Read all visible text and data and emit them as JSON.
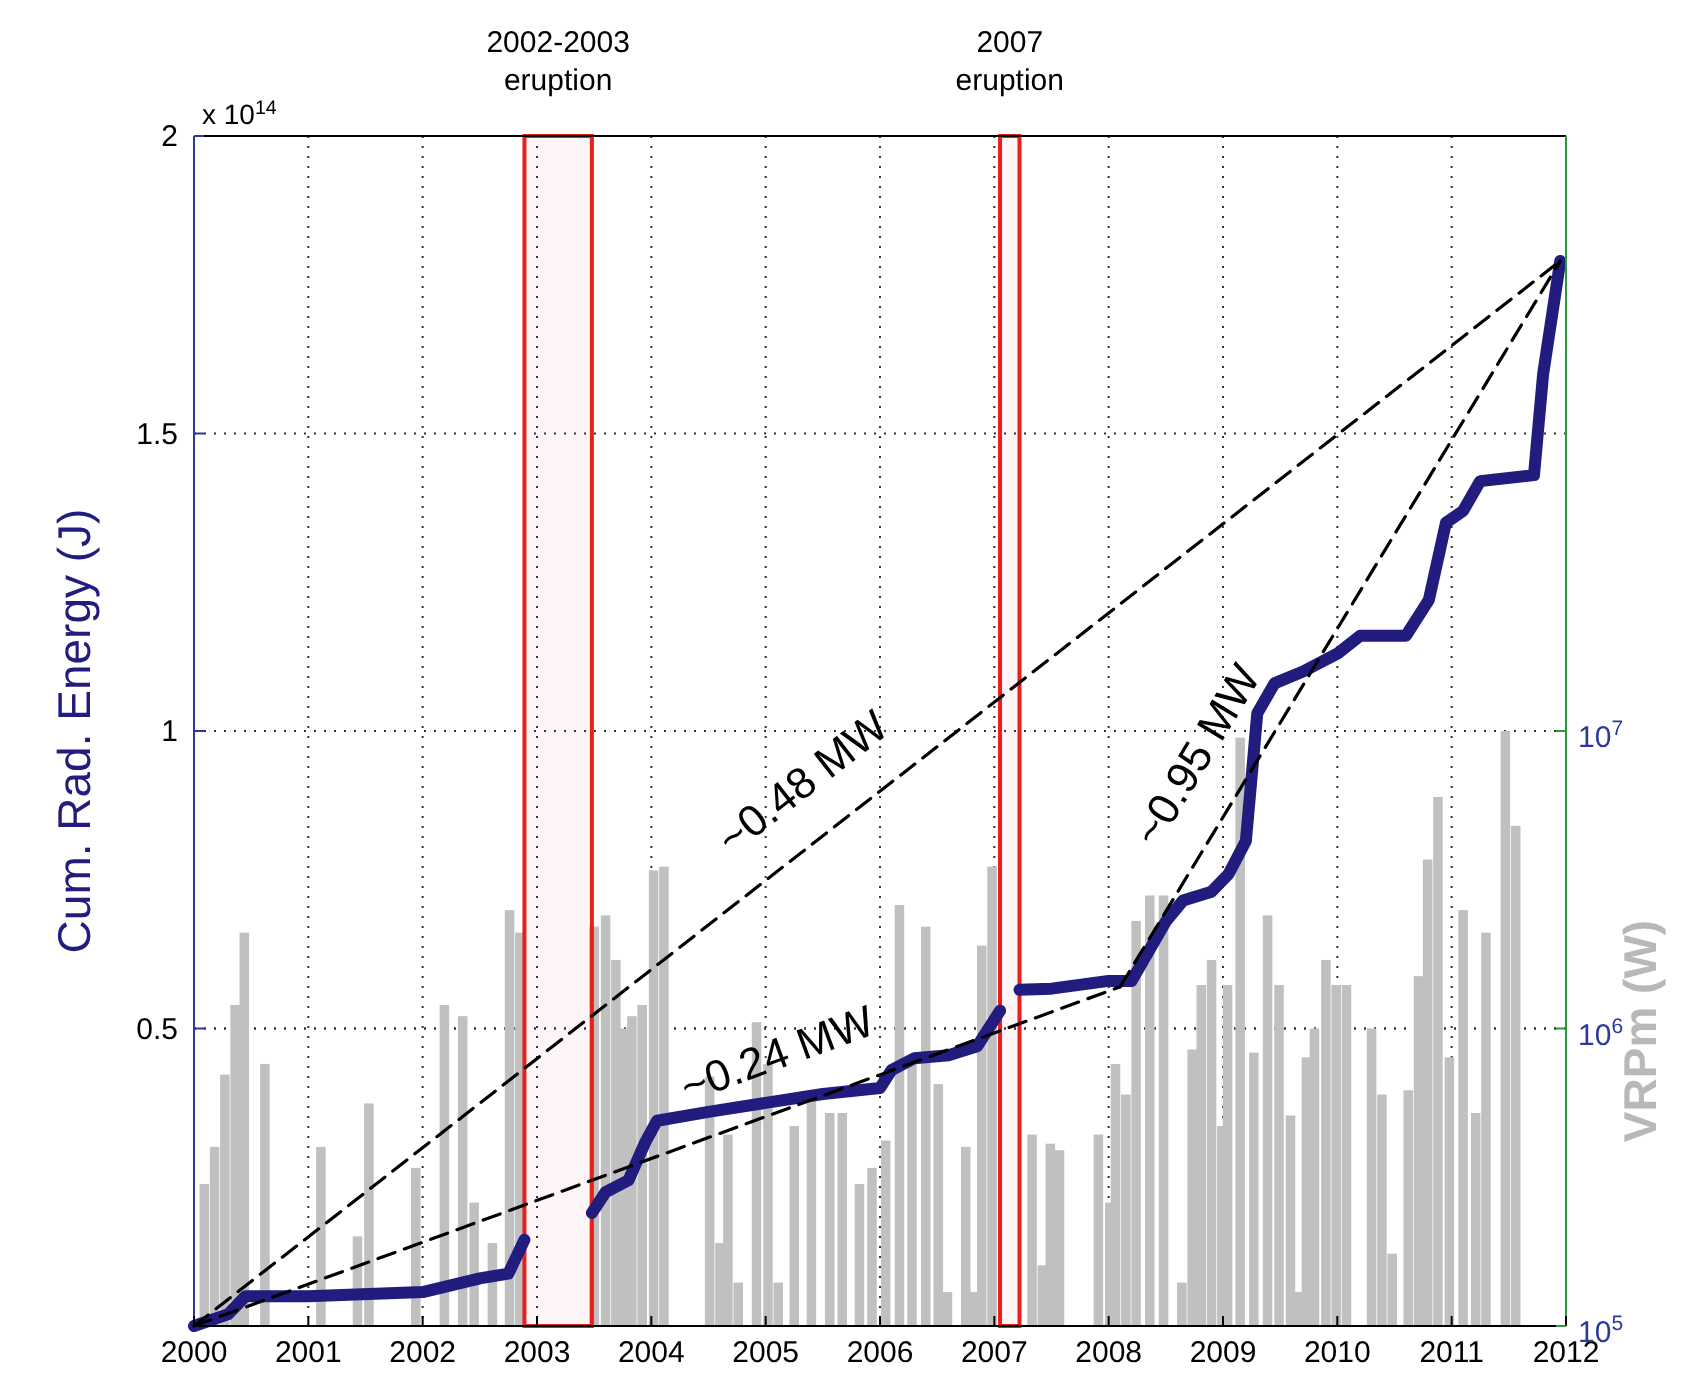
{
  "chart_data": {
    "type": "line",
    "xlabel": null,
    "ylabel": "Cum. Rad. Energy (J)",
    "y2label": "VRPm (W)",
    "xlim": [
      2000,
      2012
    ],
    "xticks": [
      2000,
      2001,
      2002,
      2003,
      2004,
      2005,
      2006,
      2007,
      2008,
      2009,
      2010,
      2011,
      2012
    ],
    "ylim": [
      0,
      2
    ],
    "yticks": [
      0.5,
      1,
      1.5,
      2
    ],
    "y2lim": [
      100000,
      1000000000
    ],
    "y2ticks": [
      {
        "value": 100000,
        "label": "10$^{5}$"
      },
      {
        "value": 1000000,
        "label": "10$^{6}$"
      },
      {
        "value": 10000000,
        "label": "10$^{7}$"
      }
    ],
    "log": "y2",
    "grid": true,
    "bands": [
      {
        "axis": "x",
        "from": 2002.89,
        "to": 2003.48,
        "label": "2002-2003\neruption",
        "color": "#e8201c"
      },
      {
        "axis": "x",
        "from": 2007.05,
        "to": 2007.22,
        "label": "2007\neruption",
        "color": "#e8201c"
      }
    ],
    "annotations": [
      "x 10$^{14}$",
      "~0.48 MW",
      "~0.24 MW",
      "~0.95 MW"
    ],
    "series": [
      {
        "type": "bar",
        "axis": "y2",
        "color": "#c0c0c0",
        "x": [
          2000.09,
          2000.18,
          2000.27,
          2000.36,
          2000.44,
          2000.62,
          2001.11,
          2001.43,
          2001.53,
          2001.94,
          2002.19,
          2002.35,
          2002.45,
          2002.61,
          2002.76,
          2002.85,
          2003.5,
          2003.6,
          2003.69,
          2003.76,
          2003.83,
          2003.92,
          2004.02,
          2004.11,
          2004.51,
          2004.6,
          2004.67,
          2004.76,
          2004.92,
          2005.02,
          2005.11,
          2005.25,
          2005.4,
          2005.56,
          2005.67,
          2005.82,
          2005.93,
          2006.05,
          2006.17,
          2006.28,
          2006.4,
          2006.51,
          2006.59,
          2006.75,
          2006.82,
          2006.89,
          2006.98,
          2007.33,
          2007.42,
          2007.49,
          2007.57,
          2007.91,
          2008.01,
          2008.06,
          2008.15,
          2008.24,
          2008.36,
          2008.48,
          2008.64,
          2008.73,
          2008.81,
          2008.9,
          2008.99,
          2009.04,
          2009.15,
          2009.27,
          2009.39,
          2009.49,
          2009.59,
          2009.66,
          2009.73,
          2009.8,
          2009.9,
          2009.99,
          2010.08,
          2010.3,
          2010.39,
          2010.48,
          2010.62,
          2010.71,
          2010.79,
          2010.88,
          2010.98,
          2011.1,
          2011.21,
          2011.3,
          2011.47,
          2011.56
        ],
        "values": [
          300000,
          400000,
          700000,
          1200000,
          2100000,
          760000,
          400000,
          200000,
          560000,
          340000,
          1200000,
          1100000,
          260000,
          190000,
          2500000,
          2100000,
          2200000,
          2400000,
          1700000,
          1000000,
          1100000,
          1200000,
          3400000,
          3500000,
          690000,
          190000,
          440000,
          140000,
          1050000,
          760000,
          140000,
          470000,
          590000,
          520000,
          520000,
          300000,
          340000,
          420000,
          2600000,
          790000,
          2200000,
          650000,
          130000,
          400000,
          130000,
          1900000,
          3500000,
          440000,
          160000,
          410000,
          390000,
          440000,
          260000,
          760000,
          600000,
          2300000,
          2800000,
          2800000,
          140000,
          850000,
          1400000,
          1700000,
          470000,
          1400000,
          9500000,
          830000,
          2400000,
          1400000,
          510000,
          130000,
          800000,
          1000000,
          1700000,
          1400000,
          1400000,
          1000000,
          600000,
          175000,
          620000,
          1500000,
          3700000,
          6000000,
          800000,
          2500000,
          520000,
          2100000,
          10000000,
          4800000
        ]
      },
      {
        "color": "#211c7e",
        "line_style": "solid",
        "x": [
          2000,
          2000.3,
          2000.45,
          2001,
          2002,
          2002.5,
          2002.75,
          2002.89,
          2003.2,
          2003.48,
          2003.6,
          2003.8,
          2003.95,
          2004.05,
          2004.5,
          2005,
          2005.5,
          2006,
          2006.1,
          2006.3,
          2006.6,
          2006.85,
          2007.05,
          2007.13,
          2007.22,
          2007.5,
          2008,
          2008.2,
          2008.5,
          2008.65,
          2008.9,
          2009.05,
          2009.2,
          2009.3,
          2009.45,
          2009.7,
          2010,
          2010.2,
          2010.6,
          2010.8,
          2010.95,
          2011.1,
          2011.25,
          2011.72,
          2011.8,
          2011.95
        ],
        "values": [
          0,
          0.02,
          0.05,
          0.05,
          0.057,
          0.08,
          0.088,
          0.145,
          null,
          0.19,
          0.225,
          0.245,
          0.31,
          0.345,
          0.36,
          0.375,
          0.39,
          0.4,
          0.43,
          0.45,
          0.455,
          0.47,
          0.53,
          null,
          0.565,
          0.567,
          0.58,
          0.58,
          0.68,
          0.715,
          0.73,
          0.76,
          0.815,
          1.03,
          1.08,
          1.1,
          1.13,
          1.16,
          1.16,
          1.22,
          1.35,
          1.37,
          1.42,
          1.43,
          1.6,
          1.79
        ]
      },
      {
        "color": "#000000",
        "line_style": "dashed",
        "x": [
          2000,
          2011.95
        ],
        "values": [
          0,
          1.79
        ]
      },
      {
        "color": "#000000",
        "line_style": "dashed",
        "x": [
          2000,
          2008.1
        ],
        "values": [
          0,
          0.57
        ]
      },
      {
        "color": "#000000",
        "line_style": "dashed",
        "x": [
          2008.1,
          2011.95
        ],
        "values": [
          0.57,
          1.79
        ]
      }
    ]
  }
}
